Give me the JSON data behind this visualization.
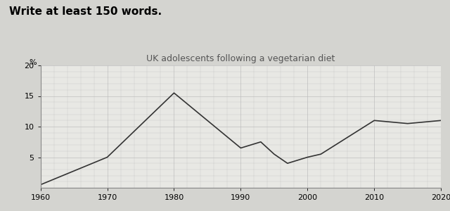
{
  "title": "UK adolescents following a vegetarian diet",
  "ylabel": "%",
  "header_text": "Write at least 150 words.",
  "x": [
    1960,
    1970,
    1980,
    1985,
    1990,
    1993,
    1995,
    1997,
    2000,
    2002,
    2010,
    2015,
    2020
  ],
  "y": [
    0.5,
    5.0,
    15.5,
    11.0,
    6.5,
    7.5,
    5.5,
    4.0,
    5.0,
    5.5,
    11.0,
    10.5,
    11.0
  ],
  "xlim": [
    1960,
    2020
  ],
  "ylim": [
    0,
    20
  ],
  "xticks": [
    1960,
    1970,
    1980,
    1990,
    2000,
    2010,
    2020
  ],
  "yticks": [
    5,
    10,
    15,
    20
  ],
  "line_color": "#333333",
  "line_width": 1.2,
  "grid_color": "#bbbbbb",
  "bg_color": "#e8e8e4",
  "fig_color": "#d4d4d0",
  "title_fontsize": 9,
  "header_fontsize": 11,
  "axis_fontsize": 8,
  "title_color": "#555555"
}
